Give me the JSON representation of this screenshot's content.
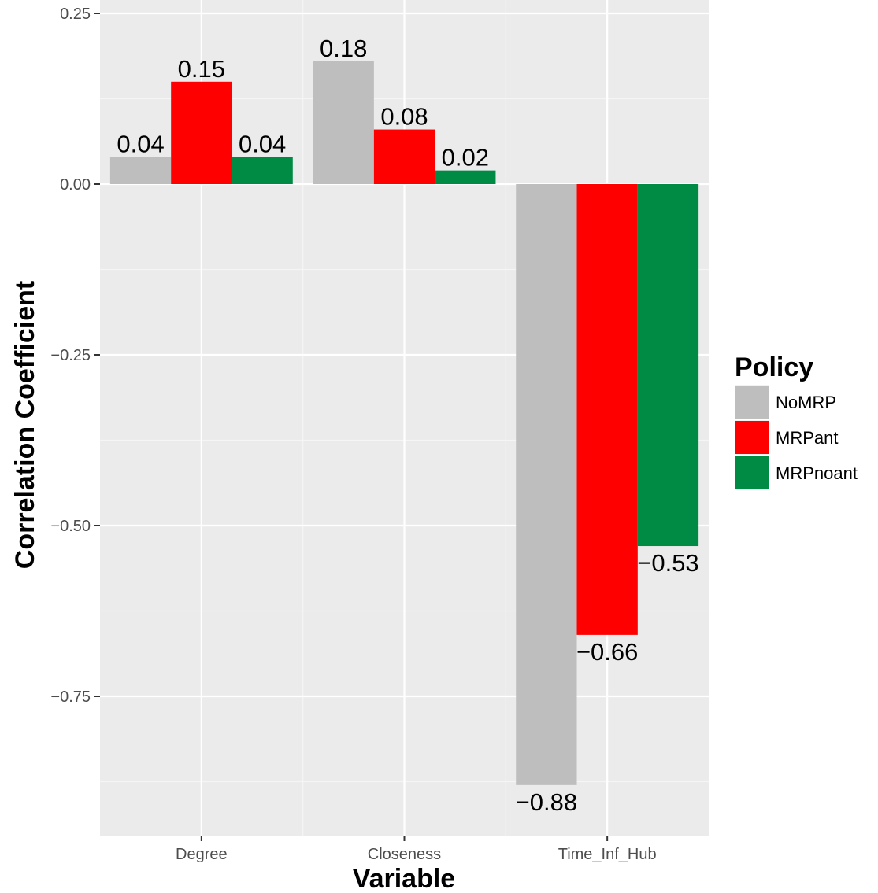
{
  "chart_data": {
    "type": "bar",
    "xlabel": "Variable",
    "ylabel": "Correlation Coefficient",
    "categories": [
      "Degree",
      "Closeness",
      "Time_Inf_Hub"
    ],
    "series": [
      {
        "name": "NoMRP",
        "color": "#bebebe",
        "values": [
          0.04,
          0.18,
          -0.88
        ],
        "labels": [
          "0.04",
          "0.18",
          "−0.88"
        ]
      },
      {
        "name": "MRPant",
        "color": "#ff0000",
        "values": [
          0.15,
          0.08,
          -0.66
        ],
        "labels": [
          "0.15",
          "0.08",
          "−0.66"
        ]
      },
      {
        "name": "MRPnoant",
        "color": "#008b45",
        "values": [
          0.04,
          0.02,
          -0.53
        ],
        "labels": [
          "0.04",
          "0.02",
          "−0.53"
        ]
      }
    ],
    "yticks": [
      0.25,
      0.0,
      -0.25,
      -0.5,
      -0.75
    ],
    "ytick_labels": [
      "0.25",
      "0.00",
      "−0.25",
      "−0.50",
      "−0.75"
    ],
    "ylim": [
      -0.9,
      0.25
    ],
    "grid": true,
    "legend": {
      "title": "Policy",
      "position": "right"
    }
  }
}
